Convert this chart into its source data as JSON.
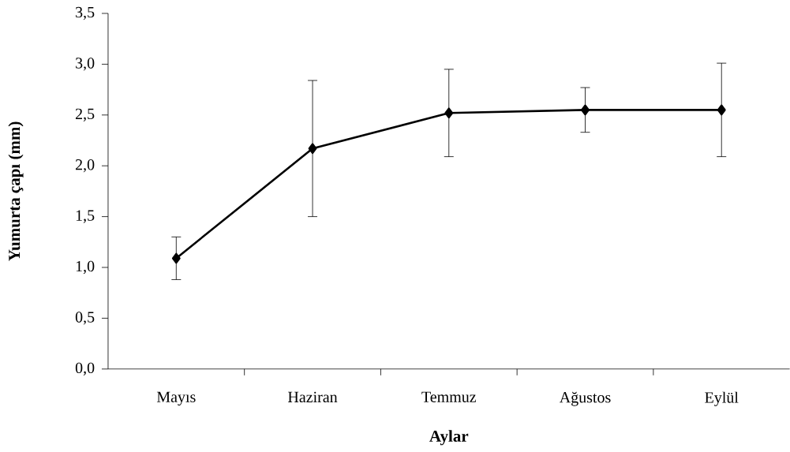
{
  "chart_data": {
    "type": "line",
    "xlabel": "Aylar",
    "ylabel": "Yumurta çapı (mm)",
    "categories": [
      "Mayıs",
      "Haziran",
      "Temmuz",
      "Ağustos",
      "Eylül"
    ],
    "values": [
      1.09,
      2.17,
      2.52,
      2.55,
      2.55
    ],
    "errors": [
      0.21,
      0.67,
      0.43,
      0.22,
      0.46
    ],
    "color": "#000000",
    "marker": "diamond",
    "ylim": [
      0,
      3.5
    ],
    "yticks": [
      {
        "value": 0,
        "label": "0,0"
      },
      {
        "value": 0.5,
        "label": "0,5"
      },
      {
        "value": 1,
        "label": "1,0"
      },
      {
        "value": 1.5,
        "label": "1,5"
      },
      {
        "value": 2,
        "label": "2,0"
      },
      {
        "value": 2.5,
        "label": "2,5"
      },
      {
        "value": 3,
        "label": "3,0"
      },
      {
        "value": 3.5,
        "label": "3,5"
      }
    ]
  }
}
